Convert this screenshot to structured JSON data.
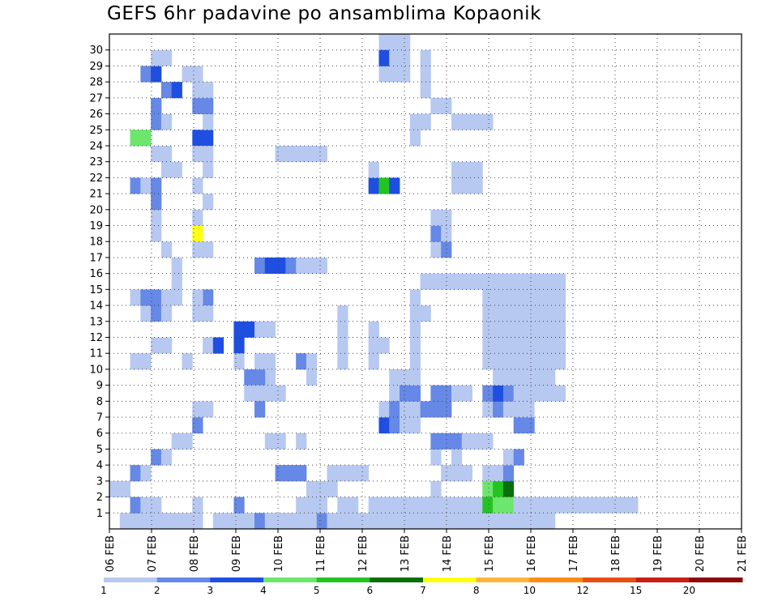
{
  "chart_data": {
    "type": "heatmap",
    "title": "GEFS 6hr padavine po ansamblima Kopaonik",
    "xlabel": "",
    "ylabel": "",
    "x_ticks": [
      "06 FEB",
      "07 FEB",
      "08 FEB",
      "09 FEB",
      "10 FEB",
      "11 FEB",
      "12 FEB",
      "13 FEB",
      "14 FEB",
      "15 FEB",
      "16 FEB",
      "17 FEB",
      "18 FEB",
      "19 FEB",
      "20 FEB",
      "21 FEB"
    ],
    "y_ticks": [
      "1",
      "2",
      "3",
      "4",
      "5",
      "6",
      "7",
      "8",
      "9",
      "10",
      "11",
      "12",
      "13",
      "14",
      "15",
      "16",
      "17",
      "18",
      "19",
      "20",
      "21",
      "22",
      "23",
      "24",
      "25",
      "26",
      "27",
      "28",
      "29",
      "30"
    ],
    "time_steps": 61,
    "members": 31,
    "grid": true,
    "legend": {
      "position": "bottom",
      "labels": [
        "1",
        "2",
        "3",
        "4",
        "5",
        "6",
        "7",
        "8",
        "10",
        "12",
        "15",
        "20"
      ],
      "colors": [
        "#b7c9f1",
        "#6688e6",
        "#1f4fe0",
        "#6ce66c",
        "#22c422",
        "#0a6e0a",
        "#ffff14",
        "#ffb43c",
        "#ff8c14",
        "#e84e14",
        "#c81e14",
        "#8c0a0a"
      ]
    },
    "cells": [
      [
        1,
        0,
        1
      ],
      [
        2,
        0,
        1
      ],
      [
        2,
        1,
        2
      ],
      [
        3,
        0,
        1
      ],
      [
        3,
        1,
        1
      ],
      [
        4,
        0,
        1
      ],
      [
        4,
        1,
        1
      ],
      [
        5,
        0,
        1
      ],
      [
        6,
        0,
        1
      ],
      [
        7,
        0,
        1
      ],
      [
        8,
        0,
        1
      ],
      [
        8,
        1,
        1
      ],
      [
        10,
        0,
        1
      ],
      [
        11,
        0,
        1
      ],
      [
        12,
        0,
        1
      ],
      [
        12,
        1,
        2
      ],
      [
        13,
        0,
        1
      ],
      [
        14,
        0,
        2
      ],
      [
        15,
        0,
        1
      ],
      [
        16,
        0,
        1
      ],
      [
        17,
        0,
        1
      ],
      [
        18,
        0,
        1
      ],
      [
        19,
        0,
        1
      ],
      [
        20,
        0,
        2
      ],
      [
        21,
        0,
        1
      ],
      [
        22,
        0,
        1
      ],
      [
        23,
        0,
        1
      ],
      [
        24,
        0,
        1
      ],
      [
        25,
        0,
        1
      ],
      [
        26,
        0,
        1
      ],
      [
        27,
        0,
        1
      ],
      [
        28,
        0,
        1
      ],
      [
        29,
        0,
        1
      ],
      [
        30,
        0,
        1
      ],
      [
        31,
        0,
        1
      ],
      [
        32,
        0,
        1
      ],
      [
        33,
        0,
        1
      ],
      [
        34,
        0,
        1
      ],
      [
        35,
        0,
        1
      ],
      [
        36,
        0,
        1
      ],
      [
        37,
        0,
        1
      ],
      [
        38,
        0,
        1
      ],
      [
        39,
        0,
        1
      ],
      [
        40,
        0,
        1
      ],
      [
        41,
        0,
        1
      ],
      [
        42,
        0,
        1
      ],
      [
        4,
        4,
        2
      ],
      [
        5,
        4,
        1
      ],
      [
        6,
        5,
        1
      ],
      [
        7,
        5,
        1
      ],
      [
        8,
        6,
        1
      ],
      [
        2,
        10,
        1
      ],
      [
        3,
        10,
        1
      ],
      [
        4,
        11,
        1
      ],
      [
        5,
        11,
        1
      ],
      [
        3,
        13,
        1
      ],
      [
        4,
        13,
        2
      ],
      [
        5,
        13,
        1
      ],
      [
        2,
        14,
        1
      ],
      [
        3,
        14,
        2
      ],
      [
        4,
        14,
        2
      ],
      [
        5,
        14,
        1
      ],
      [
        6,
        14,
        1
      ],
      [
        6,
        15,
        1
      ],
      [
        2,
        21,
        2
      ],
      [
        3,
        21,
        1
      ],
      [
        4,
        21,
        2
      ],
      [
        5,
        22,
        1
      ],
      [
        6,
        22,
        1
      ],
      [
        4,
        23,
        1
      ],
      [
        5,
        23,
        1
      ],
      [
        2,
        24,
        4
      ],
      [
        3,
        24,
        4
      ],
      [
        4,
        25,
        2
      ],
      [
        5,
        25,
        1
      ],
      [
        4,
        26,
        2
      ],
      [
        5,
        27,
        2
      ],
      [
        6,
        27,
        3
      ],
      [
        3,
        28,
        2
      ],
      [
        4,
        28,
        3
      ],
      [
        7,
        28,
        1
      ],
      [
        8,
        28,
        1
      ],
      [
        4,
        29,
        1
      ],
      [
        5,
        29,
        1
      ],
      [
        0,
        2,
        1
      ],
      [
        1,
        2,
        1
      ],
      [
        2,
        3,
        2
      ],
      [
        3,
        3,
        1
      ],
      [
        8,
        6,
        2
      ],
      [
        8,
        7,
        1
      ],
      [
        9,
        7,
        1
      ],
      [
        9,
        11,
        1
      ],
      [
        10,
        11,
        3
      ],
      [
        9,
        14,
        2
      ],
      [
        8,
        14,
        1
      ],
      [
        9,
        20,
        1
      ],
      [
        9,
        22,
        1
      ],
      [
        8,
        24,
        3
      ],
      [
        9,
        24,
        3
      ],
      [
        12,
        11,
        3
      ],
      [
        12,
        12,
        3
      ],
      [
        13,
        12,
        3
      ],
      [
        14,
        12,
        1
      ],
      [
        15,
        12,
        1
      ],
      [
        8,
        13,
        1
      ],
      [
        9,
        13,
        1
      ],
      [
        8,
        17,
        1
      ],
      [
        9,
        17,
        1
      ],
      [
        8,
        19,
        1
      ],
      [
        8,
        23,
        1
      ],
      [
        9,
        23,
        1
      ],
      [
        9,
        25,
        1
      ],
      [
        8,
        26,
        2
      ],
      [
        9,
        26,
        2
      ],
      [
        8,
        27,
        1
      ],
      [
        9,
        27,
        1
      ],
      [
        8,
        28,
        1
      ],
      [
        8,
        18,
        7
      ],
      [
        8,
        21,
        1
      ],
      [
        6,
        16,
        1
      ],
      [
        5,
        17,
        1
      ],
      [
        4,
        18,
        1
      ],
      [
        4,
        19,
        1
      ],
      [
        4,
        20,
        2
      ],
      [
        15,
        5,
        1
      ],
      [
        16,
        5,
        1
      ],
      [
        16,
        3,
        2
      ],
      [
        17,
        3,
        2
      ],
      [
        18,
        3,
        2
      ],
      [
        18,
        5,
        1
      ],
      [
        7,
        10,
        1
      ],
      [
        12,
        10,
        1
      ],
      [
        15,
        9,
        1
      ],
      [
        14,
        9,
        2
      ],
      [
        13,
        9,
        2
      ],
      [
        14,
        8,
        1
      ],
      [
        14,
        7,
        2
      ],
      [
        13,
        8,
        1
      ],
      [
        15,
        8,
        1
      ],
      [
        16,
        8,
        1
      ],
      [
        14,
        10,
        1
      ],
      [
        15,
        10,
        1
      ],
      [
        18,
        1,
        1
      ],
      [
        19,
        1,
        1
      ],
      [
        19,
        2,
        1
      ],
      [
        20,
        1,
        1
      ],
      [
        20,
        2,
        1
      ],
      [
        21,
        2,
        1
      ],
      [
        22,
        1,
        1
      ],
      [
        23,
        1,
        1
      ],
      [
        21,
        3,
        1
      ],
      [
        22,
        3,
        1
      ],
      [
        23,
        3,
        1
      ],
      [
        24,
        3,
        1
      ],
      [
        25,
        1,
        1
      ],
      [
        26,
        1,
        1
      ],
      [
        27,
        1,
        1
      ],
      [
        28,
        1,
        1
      ],
      [
        29,
        1,
        1
      ],
      [
        30,
        1,
        1
      ],
      [
        31,
        1,
        1
      ],
      [
        32,
        1,
        1
      ],
      [
        33,
        1,
        1
      ],
      [
        34,
        1,
        1
      ],
      [
        35,
        1,
        1
      ],
      [
        36,
        1,
        1
      ],
      [
        37,
        1,
        1
      ],
      [
        38,
        1,
        1
      ],
      [
        39,
        1,
        1
      ],
      [
        40,
        1,
        1
      ],
      [
        41,
        1,
        1
      ],
      [
        42,
        1,
        1
      ],
      [
        43,
        1,
        1
      ],
      [
        44,
        1,
        1
      ],
      [
        45,
        1,
        1
      ],
      [
        46,
        1,
        1
      ],
      [
        47,
        1,
        1
      ],
      [
        48,
        1,
        1
      ],
      [
        49,
        1,
        1
      ],
      [
        50,
        1,
        1
      ],
      [
        14,
        16,
        2
      ],
      [
        15,
        16,
        3
      ],
      [
        16,
        16,
        3
      ],
      [
        17,
        16,
        2
      ],
      [
        18,
        16,
        1
      ],
      [
        19,
        16,
        1
      ],
      [
        20,
        16,
        1
      ],
      [
        16,
        23,
        1
      ],
      [
        17,
        23,
        1
      ],
      [
        18,
        23,
        1
      ],
      [
        19,
        23,
        1
      ],
      [
        20,
        23,
        1
      ],
      [
        18,
        10,
        2
      ],
      [
        19,
        9,
        1
      ],
      [
        19,
        10,
        1
      ],
      [
        22,
        10,
        1
      ],
      [
        22,
        11,
        1
      ],
      [
        22,
        12,
        1
      ],
      [
        22,
        13,
        1
      ],
      [
        25,
        10,
        1
      ],
      [
        25,
        11,
        1
      ],
      [
        25,
        12,
        1
      ],
      [
        27,
        9,
        1
      ],
      [
        28,
        9,
        1
      ],
      [
        28,
        8,
        1
      ],
      [
        27,
        8,
        1
      ],
      [
        26,
        11,
        1
      ],
      [
        25,
        21,
        3
      ],
      [
        26,
        21,
        5
      ],
      [
        27,
        21,
        3
      ],
      [
        25,
        22,
        1
      ],
      [
        26,
        6,
        3
      ],
      [
        27,
        6,
        2
      ],
      [
        26,
        7,
        1
      ],
      [
        27,
        7,
        2
      ],
      [
        28,
        6,
        1
      ],
      [
        28,
        7,
        1
      ],
      [
        28,
        8,
        2
      ],
      [
        29,
        7,
        1
      ],
      [
        29,
        8,
        2
      ],
      [
        26,
        30,
        1
      ],
      [
        27,
        30,
        1
      ],
      [
        28,
        29,
        1
      ],
      [
        26,
        28,
        1
      ],
      [
        27,
        28,
        1
      ],
      [
        28,
        28,
        1
      ],
      [
        26,
        29,
        3
      ],
      [
        27,
        29,
        1
      ],
      [
        28,
        30,
        1
      ],
      [
        29,
        13,
        1
      ],
      [
        30,
        13,
        1
      ],
      [
        29,
        14,
        1
      ],
      [
        30,
        15,
        1
      ],
      [
        31,
        15,
        1
      ],
      [
        32,
        15,
        1
      ],
      [
        33,
        15,
        1
      ],
      [
        34,
        15,
        1
      ],
      [
        35,
        15,
        1
      ],
      [
        36,
        15,
        1
      ],
      [
        29,
        24,
        1
      ],
      [
        29,
        25,
        1
      ],
      [
        30,
        25,
        1
      ],
      [
        30,
        27,
        1
      ],
      [
        30,
        28,
        1
      ],
      [
        30,
        29,
        1
      ],
      [
        31,
        2,
        1
      ],
      [
        31,
        4,
        1
      ],
      [
        31,
        5,
        2
      ],
      [
        32,
        5,
        2
      ],
      [
        33,
        5,
        2
      ],
      [
        34,
        5,
        1
      ],
      [
        35,
        5,
        1
      ],
      [
        36,
        5,
        1
      ],
      [
        30,
        7,
        2
      ],
      [
        31,
        7,
        2
      ],
      [
        32,
        7,
        2
      ],
      [
        31,
        8,
        2
      ],
      [
        32,
        8,
        2
      ],
      [
        33,
        8,
        1
      ],
      [
        34,
        8,
        1
      ],
      [
        29,
        6,
        1
      ],
      [
        29,
        9,
        1
      ],
      [
        29,
        10,
        1
      ],
      [
        29,
        11,
        1
      ],
      [
        29,
        12,
        1
      ],
      [
        31,
        17,
        1
      ],
      [
        32,
        17,
        2
      ],
      [
        31,
        18,
        2
      ],
      [
        32,
        18,
        1
      ],
      [
        32,
        19,
        1
      ],
      [
        31,
        19,
        1
      ],
      [
        31,
        26,
        1
      ],
      [
        32,
        26,
        1
      ],
      [
        33,
        25,
        1
      ],
      [
        34,
        25,
        1
      ],
      [
        35,
        25,
        1
      ],
      [
        36,
        25,
        1
      ],
      [
        32,
        3,
        1
      ],
      [
        33,
        3,
        1
      ],
      [
        33,
        4,
        1
      ],
      [
        34,
        3,
        1
      ],
      [
        33,
        22,
        1
      ],
      [
        34,
        22,
        1
      ],
      [
        34,
        21,
        1
      ],
      [
        35,
        22,
        1
      ],
      [
        33,
        21,
        1
      ],
      [
        35,
        21,
        1
      ],
      [
        36,
        2,
        4
      ],
      [
        37,
        2,
        5
      ],
      [
        38,
        2,
        6
      ],
      [
        36,
        1,
        5
      ],
      [
        37,
        1,
        4
      ],
      [
        38,
        1,
        4
      ],
      [
        39,
        1,
        1
      ],
      [
        36,
        3,
        1
      ],
      [
        37,
        3,
        1
      ],
      [
        38,
        3,
        2
      ],
      [
        38,
        4,
        1
      ],
      [
        39,
        4,
        2
      ],
      [
        39,
        6,
        2
      ],
      [
        40,
        6,
        2
      ],
      [
        36,
        7,
        1
      ],
      [
        37,
        7,
        2
      ],
      [
        38,
        7,
        1
      ],
      [
        39,
        7,
        1
      ],
      [
        40,
        7,
        1
      ],
      [
        36,
        8,
        2
      ],
      [
        37,
        8,
        3
      ],
      [
        38,
        8,
        2
      ],
      [
        39,
        8,
        1
      ],
      [
        40,
        8,
        1
      ],
      [
        41,
        8,
        1
      ],
      [
        42,
        8,
        1
      ],
      [
        43,
        8,
        1
      ],
      [
        37,
        9,
        1
      ],
      [
        38,
        9,
        1
      ],
      [
        39,
        9,
        1
      ],
      [
        40,
        9,
        1
      ],
      [
        41,
        9,
        1
      ],
      [
        42,
        9,
        1
      ],
      [
        36,
        10,
        1
      ],
      [
        37,
        10,
        1
      ],
      [
        38,
        10,
        1
      ],
      [
        39,
        10,
        1
      ],
      [
        40,
        10,
        1
      ],
      [
        41,
        10,
        1
      ],
      [
        42,
        10,
        1
      ],
      [
        43,
        10,
        1
      ],
      [
        36,
        11,
        1
      ],
      [
        37,
        11,
        1
      ],
      [
        38,
        11,
        1
      ],
      [
        39,
        11,
        1
      ],
      [
        40,
        11,
        1
      ],
      [
        41,
        11,
        1
      ],
      [
        42,
        11,
        1
      ],
      [
        43,
        11,
        1
      ],
      [
        36,
        12,
        1
      ],
      [
        37,
        12,
        1
      ],
      [
        38,
        12,
        1
      ],
      [
        39,
        12,
        1
      ],
      [
        40,
        12,
        1
      ],
      [
        41,
        12,
        1
      ],
      [
        42,
        12,
        1
      ],
      [
        43,
        12,
        1
      ],
      [
        36,
        13,
        1
      ],
      [
        37,
        13,
        1
      ],
      [
        38,
        13,
        1
      ],
      [
        39,
        13,
        1
      ],
      [
        40,
        13,
        1
      ],
      [
        41,
        13,
        1
      ],
      [
        42,
        13,
        1
      ],
      [
        43,
        13,
        1
      ],
      [
        36,
        14,
        1
      ],
      [
        37,
        14,
        1
      ],
      [
        38,
        14,
        1
      ],
      [
        39,
        14,
        1
      ],
      [
        40,
        14,
        1
      ],
      [
        41,
        14,
        1
      ],
      [
        42,
        14,
        1
      ],
      [
        43,
        14,
        1
      ],
      [
        36,
        15,
        1
      ],
      [
        37,
        15,
        1
      ],
      [
        38,
        15,
        1
      ],
      [
        39,
        15,
        1
      ],
      [
        40,
        15,
        1
      ],
      [
        41,
        15,
        1
      ],
      [
        42,
        15,
        1
      ],
      [
        43,
        15,
        1
      ]
    ]
  }
}
